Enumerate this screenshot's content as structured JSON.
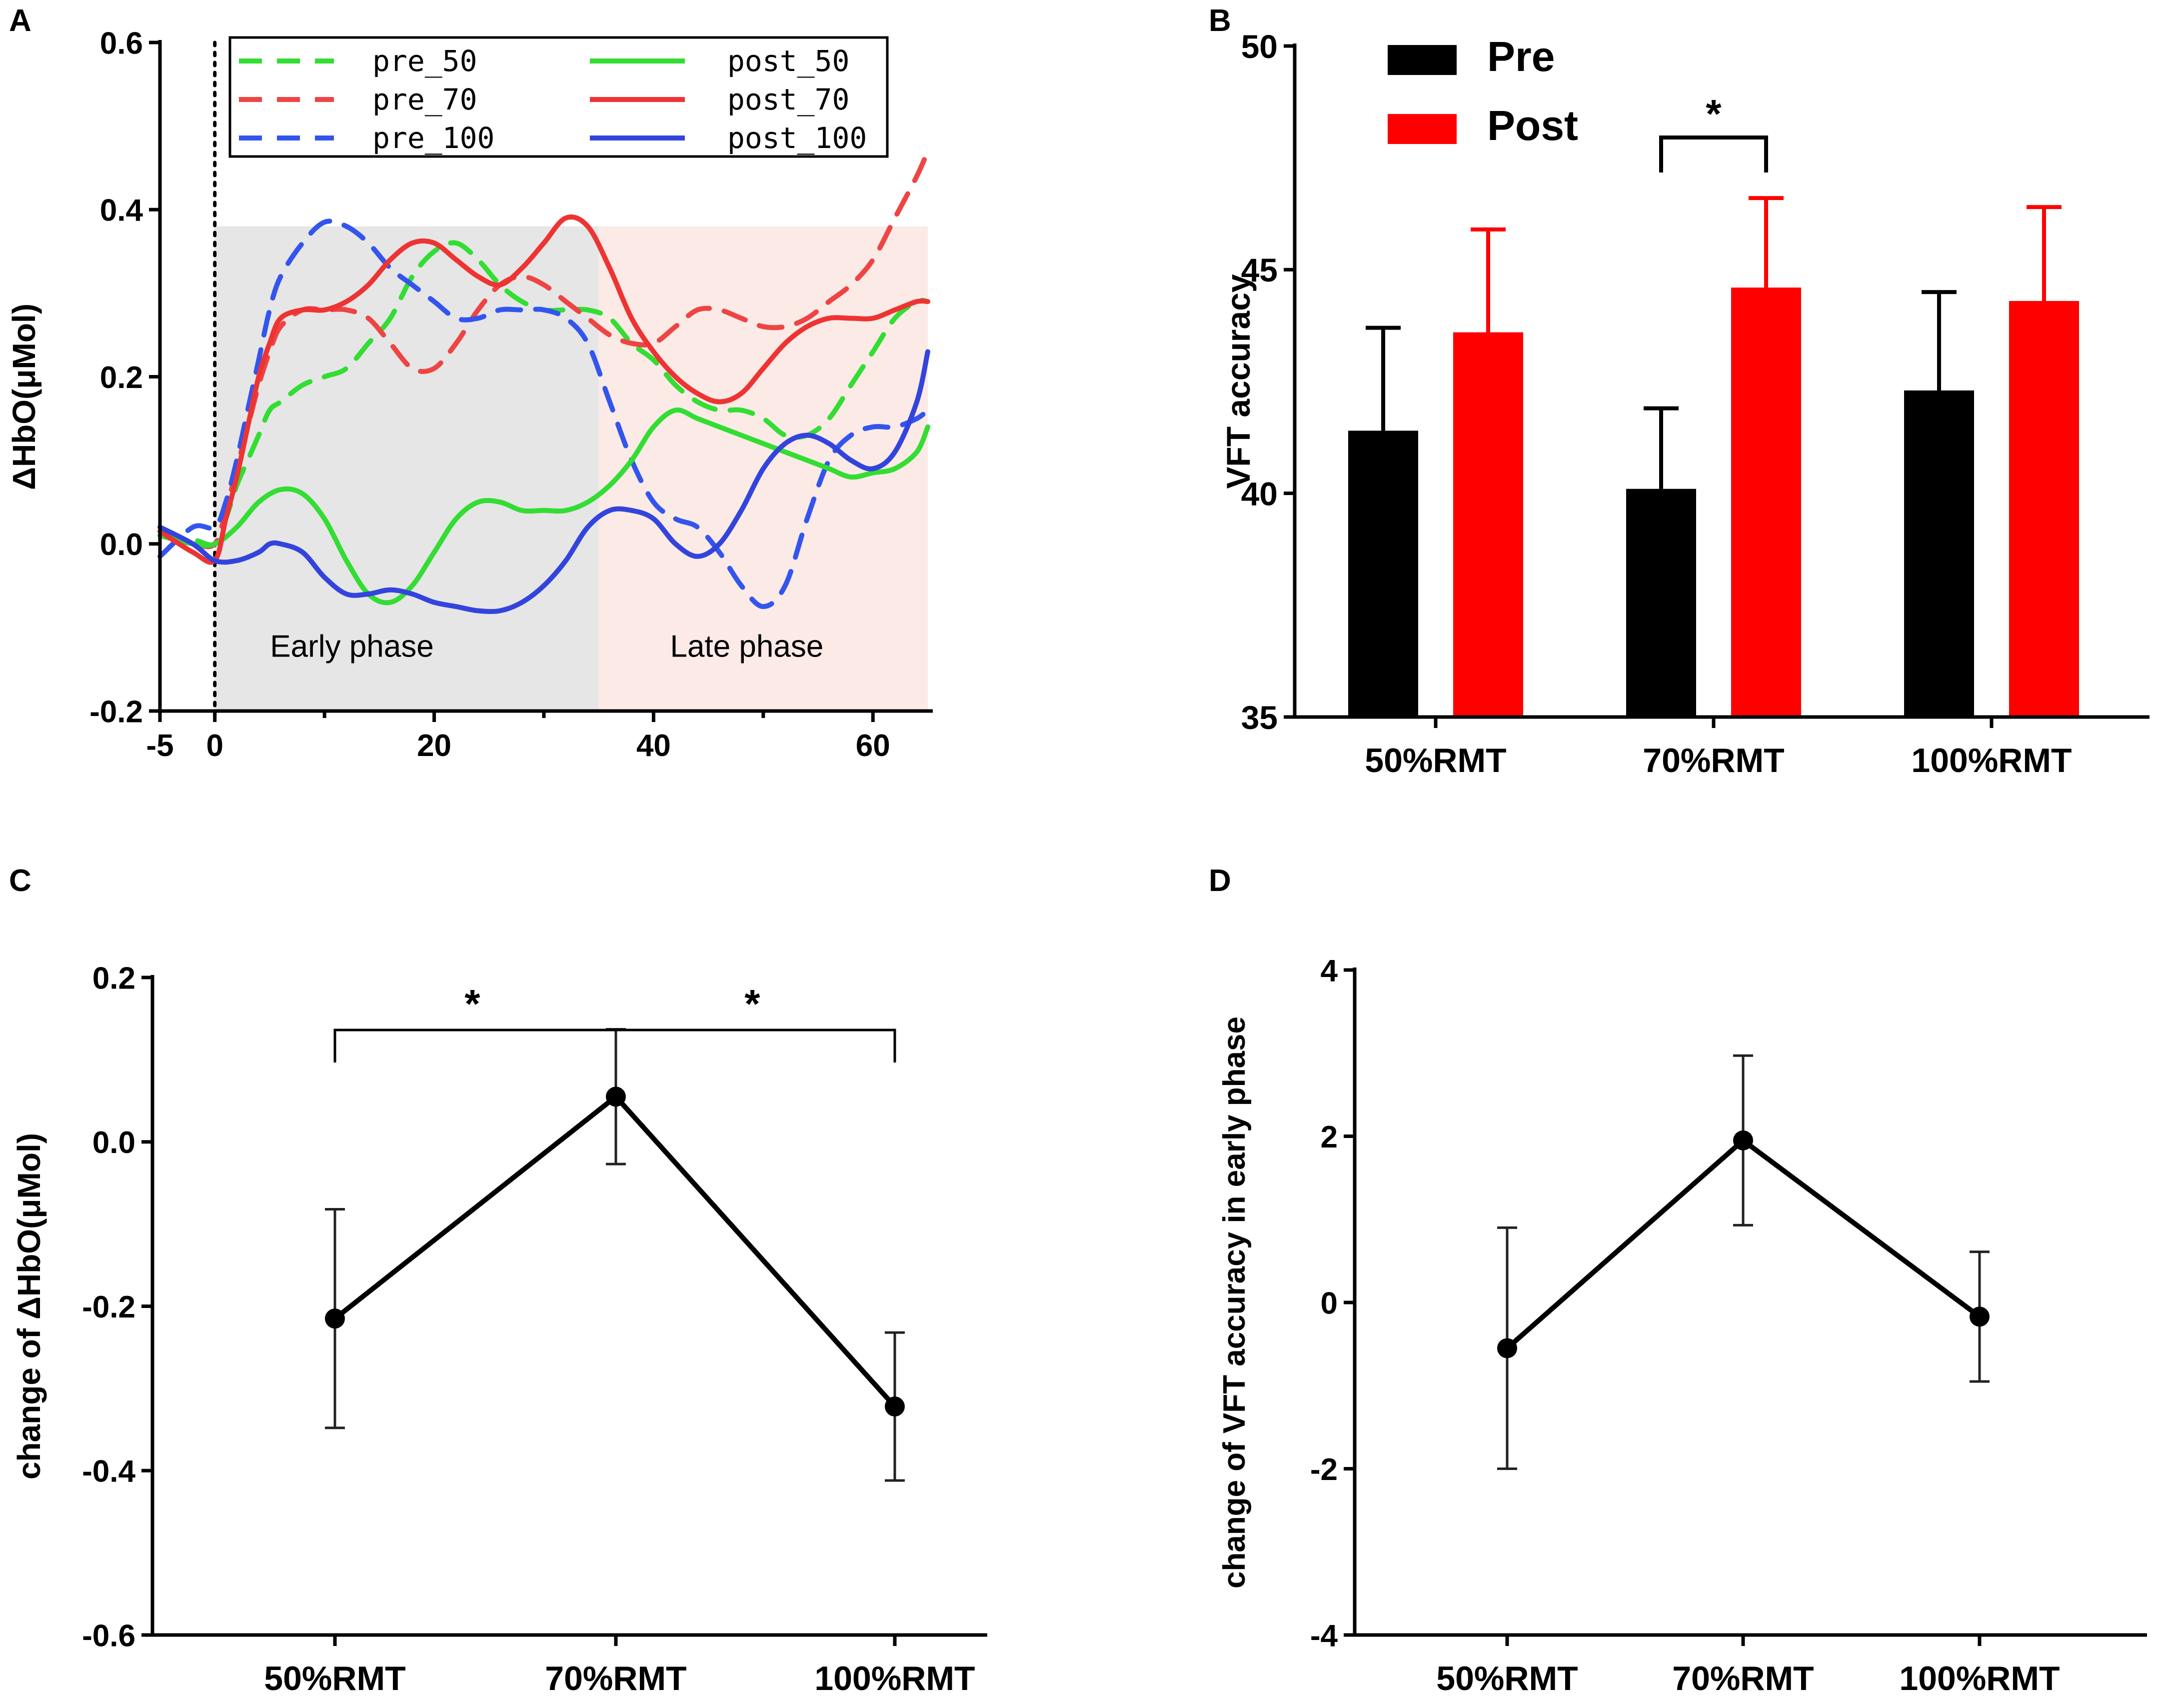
{
  "chart_data": [
    {
      "panel": "A",
      "type": "line",
      "xlabel": "",
      "ylabel": "ΔHbO(μMol)",
      "xlim": [
        -5,
        65
      ],
      "ylim": [
        -0.2,
        0.6
      ],
      "xticks": [
        -5,
        0,
        20,
        40,
        60
      ],
      "yticks": [
        -0.2,
        0.0,
        0.2,
        0.4,
        0.6
      ],
      "xtick_labels": [
        "-5",
        "0",
        "20",
        "40",
        "60"
      ],
      "ytick_labels": [
        "-0.2",
        "0.0",
        "0.2",
        "0.4",
        "0.6"
      ],
      "regions": [
        {
          "label": "Early phase",
          "x0": 0,
          "x1": 35,
          "color": "#e6e6e6"
        },
        {
          "label": "Late phase",
          "x0": 35,
          "x1": 65,
          "color": "#fbeae6"
        }
      ],
      "legend": [
        "pre_50",
        "pre_70",
        "pre_100",
        "post_50",
        "post_70",
        "post_100"
      ],
      "series": [
        {
          "name": "pre_50",
          "color": "#33dd33",
          "dash": true,
          "x": [
            -5,
            -2,
            0,
            1,
            2,
            3,
            4,
            5,
            6,
            8,
            10,
            12,
            14,
            16,
            18,
            20,
            22,
            24,
            26,
            28,
            30,
            32,
            34,
            36,
            38,
            40,
            42,
            44,
            46,
            48,
            50,
            52,
            54,
            56,
            58,
            60,
            62,
            64,
            65
          ],
          "y": [
            0.01,
            0.005,
            0.0,
            0.03,
            0.07,
            0.1,
            0.13,
            0.16,
            0.17,
            0.19,
            0.2,
            0.21,
            0.24,
            0.27,
            0.32,
            0.35,
            0.36,
            0.34,
            0.31,
            0.29,
            0.28,
            0.28,
            0.28,
            0.27,
            0.24,
            0.22,
            0.19,
            0.17,
            0.16,
            0.16,
            0.15,
            0.13,
            0.13,
            0.15,
            0.19,
            0.23,
            0.27,
            0.29,
            0.29
          ]
        },
        {
          "name": "pre_70",
          "color": "#ee4444",
          "dash": true,
          "x": [
            -5,
            -2,
            0,
            1,
            2,
            3,
            4,
            5,
            6,
            8,
            10,
            12,
            14,
            16,
            18,
            20,
            22,
            24,
            26,
            28,
            30,
            32,
            34,
            36,
            38,
            40,
            42,
            44,
            46,
            48,
            50,
            52,
            54,
            56,
            58,
            60,
            62,
            64,
            65
          ],
          "y": [
            0.01,
            0.0,
            0.0,
            0.04,
            0.09,
            0.14,
            0.19,
            0.23,
            0.26,
            0.28,
            0.28,
            0.28,
            0.27,
            0.24,
            0.21,
            0.21,
            0.24,
            0.28,
            0.31,
            0.32,
            0.31,
            0.29,
            0.27,
            0.25,
            0.24,
            0.24,
            0.26,
            0.28,
            0.28,
            0.27,
            0.26,
            0.26,
            0.27,
            0.29,
            0.31,
            0.34,
            0.39,
            0.44,
            0.47
          ]
        },
        {
          "name": "pre_100",
          "color": "#3355ee",
          "dash": true,
          "x": [
            -5,
            -2,
            0,
            1,
            2,
            3,
            4,
            5,
            6,
            8,
            10,
            12,
            14,
            16,
            18,
            20,
            22,
            24,
            26,
            28,
            30,
            32,
            34,
            36,
            38,
            40,
            42,
            44,
            46,
            48,
            50,
            52,
            54,
            56,
            58,
            60,
            62,
            64,
            65
          ],
          "y": [
            -0.015,
            0.02,
            0.02,
            0.05,
            0.1,
            0.16,
            0.22,
            0.28,
            0.32,
            0.36,
            0.385,
            0.38,
            0.36,
            0.33,
            0.31,
            0.29,
            0.27,
            0.27,
            0.28,
            0.28,
            0.28,
            0.27,
            0.24,
            0.17,
            0.1,
            0.05,
            0.03,
            0.02,
            -0.01,
            -0.05,
            -0.075,
            -0.05,
            0.03,
            0.1,
            0.13,
            0.14,
            0.14,
            0.15,
            0.16
          ]
        },
        {
          "name": "post_50",
          "color": "#33dd33",
          "dash": false,
          "x": [
            -5,
            -2,
            0,
            2,
            4,
            6,
            8,
            10,
            12,
            14,
            16,
            18,
            20,
            22,
            24,
            26,
            28,
            30,
            32,
            34,
            36,
            38,
            40,
            42,
            44,
            46,
            48,
            50,
            52,
            54,
            56,
            58,
            60,
            62,
            64,
            65
          ],
          "y": [
            0.01,
            0.0,
            0.0,
            0.02,
            0.05,
            0.065,
            0.06,
            0.03,
            -0.02,
            -0.06,
            -0.07,
            -0.05,
            -0.01,
            0.03,
            0.05,
            0.05,
            0.04,
            0.04,
            0.04,
            0.05,
            0.07,
            0.1,
            0.14,
            0.16,
            0.15,
            0.14,
            0.13,
            0.12,
            0.11,
            0.1,
            0.09,
            0.08,
            0.085,
            0.09,
            0.11,
            0.14
          ]
        },
        {
          "name": "post_70",
          "color": "#ee3333",
          "dash": false,
          "x": [
            -5,
            -2,
            0,
            1,
            2,
            3,
            4,
            5,
            6,
            8,
            10,
            12,
            14,
            16,
            18,
            20,
            22,
            24,
            26,
            28,
            30,
            32,
            34,
            36,
            38,
            40,
            42,
            44,
            46,
            48,
            50,
            52,
            54,
            56,
            58,
            60,
            62,
            64,
            65
          ],
          "y": [
            0.015,
            -0.01,
            -0.02,
            0.03,
            0.08,
            0.14,
            0.2,
            0.24,
            0.27,
            0.28,
            0.28,
            0.29,
            0.31,
            0.34,
            0.36,
            0.36,
            0.34,
            0.32,
            0.31,
            0.33,
            0.36,
            0.39,
            0.38,
            0.33,
            0.27,
            0.23,
            0.2,
            0.18,
            0.17,
            0.18,
            0.21,
            0.24,
            0.26,
            0.27,
            0.27,
            0.27,
            0.28,
            0.29,
            0.29
          ]
        },
        {
          "name": "post_100",
          "color": "#3344dd",
          "dash": false,
          "x": [
            -5,
            -2,
            0,
            2,
            4,
            5,
            6,
            8,
            10,
            12,
            14,
            16,
            18,
            20,
            22,
            24,
            26,
            28,
            30,
            32,
            34,
            36,
            38,
            40,
            42,
            44,
            46,
            48,
            50,
            52,
            54,
            56,
            58,
            60,
            62,
            64,
            65
          ],
          "y": [
            0.02,
            0.0,
            -0.02,
            -0.02,
            -0.01,
            0.0,
            0.0,
            -0.01,
            -0.04,
            -0.06,
            -0.06,
            -0.055,
            -0.06,
            -0.07,
            -0.075,
            -0.08,
            -0.08,
            -0.07,
            -0.05,
            -0.02,
            0.02,
            0.04,
            0.04,
            0.03,
            0.0,
            -0.015,
            0.0,
            0.04,
            0.09,
            0.12,
            0.13,
            0.12,
            0.1,
            0.09,
            0.11,
            0.17,
            0.23
          ]
        }
      ]
    },
    {
      "panel": "B",
      "type": "bar",
      "title": "",
      "xlabel": "",
      "ylabel": "VFT accuracy",
      "ylim": [
        35,
        50
      ],
      "yticks": [
        35,
        40,
        45,
        50
      ],
      "ytick_labels": [
        "35",
        "40",
        "45",
        "50"
      ],
      "categories": [
        "50%RMT",
        "70%RMT",
        "100%RMT"
      ],
      "series": [
        {
          "name": "Pre",
          "color": "#000000",
          "values": [
            41.4,
            40.1,
            42.3
          ],
          "errors": [
            2.3,
            1.8,
            2.2
          ]
        },
        {
          "name": "Post",
          "color": "#ff0000",
          "values": [
            43.6,
            44.6,
            44.3
          ],
          "errors": [
            2.3,
            2.0,
            2.1
          ]
        }
      ],
      "annotations": [
        {
          "text": "*",
          "between": "70%RMT Pre vs Post"
        }
      ]
    },
    {
      "panel": "C",
      "type": "line",
      "xlabel": "",
      "ylabel": "change of ΔHbO(μMol)",
      "ylim": [
        -0.6,
        0.2
      ],
      "yticks": [
        -0.6,
        -0.4,
        -0.2,
        0.0,
        0.2
      ],
      "ytick_labels": [
        "-0.6",
        "-0.4",
        "-0.2",
        "0.0",
        "0.2"
      ],
      "categories": [
        "50%RMT",
        "70%RMT",
        "100%RMT"
      ],
      "values": [
        -0.215,
        0.055,
        -0.322
      ],
      "errors": [
        0.133,
        0.082,
        0.09
      ],
      "annotations": [
        {
          "text": "*",
          "between": "50%RMT vs 70%RMT"
        },
        {
          "text": "*",
          "between": "70%RMT vs 100%RMT"
        }
      ]
    },
    {
      "panel": "D",
      "type": "line",
      "xlabel": "",
      "ylabel": "change of VFT accuracy in early phase",
      "ylim": [
        -4,
        4
      ],
      "yticks": [
        -4,
        -2,
        0,
        2,
        4
      ],
      "ytick_labels": [
        "-4",
        "-2",
        "0",
        "2",
        "4"
      ],
      "categories": [
        "50%RMT",
        "70%RMT",
        "100%RMT"
      ],
      "values": [
        -0.55,
        1.95,
        -0.17
      ],
      "errors": [
        1.45,
        1.02,
        0.78
      ]
    }
  ],
  "labels": {
    "panel_a": "A",
    "panel_b": "B",
    "panel_c": "C",
    "panel_d": "D",
    "early_phase": "Early phase",
    "late_phase": "Late phase",
    "sig_b": "*",
    "sig_c1": "*",
    "sig_c2": "*"
  }
}
